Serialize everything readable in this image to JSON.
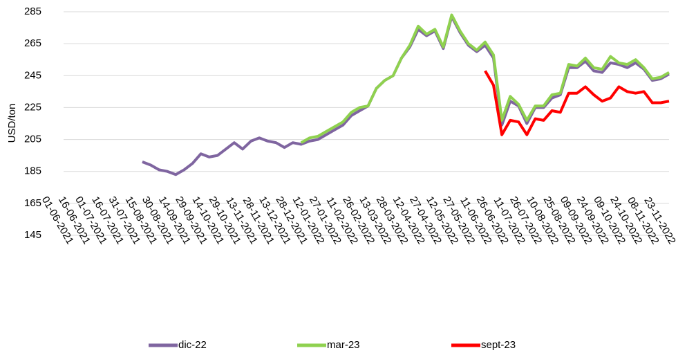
{
  "chart_data": {
    "type": "line",
    "y_label": "USD/ton",
    "categories": [
      "01-06-2021",
      null,
      "16-06-2021",
      null,
      "01-07-2021",
      null,
      "16-07-2021",
      null,
      "31-07-2021",
      null,
      "15-08-2021",
      null,
      "30-08-2021",
      null,
      "14-09-2021",
      null,
      "29-09-2021",
      null,
      "14-10-2021",
      null,
      "29-10-2021",
      null,
      "13-11-2021",
      null,
      "28-11-2021",
      null,
      "13-12-2021",
      null,
      "28-12-2021",
      null,
      "12-01-2022",
      null,
      "27-01-2022",
      null,
      "11-02-2022",
      null,
      "26-02-2022",
      null,
      "13-03-2022",
      null,
      "28-03-2022",
      null,
      "12-04-2022",
      null,
      "27-04-2022",
      null,
      "12-05-2022",
      null,
      "27-05-2022",
      null,
      "11-06-2022",
      null,
      "26-06-2022",
      null,
      "11-07-2022",
      null,
      "26-07-2022",
      null,
      "10-08-2022",
      null,
      "25-08-2022",
      null,
      "09-09-2022",
      null,
      "24-09-2022",
      null,
      "09-10-2022",
      null,
      "24-10-2022",
      null,
      "08-11-2022",
      null,
      "23-11-2022"
    ],
    "series": [
      {
        "name": "dic-22",
        "color": "#7f65a0",
        "values": [
          null,
          null,
          null,
          null,
          null,
          null,
          null,
          null,
          null,
          191,
          189,
          186,
          185,
          183,
          186,
          190,
          196,
          194,
          195,
          199,
          203,
          199,
          204,
          206,
          204,
          203,
          200,
          203,
          202,
          204,
          205,
          208,
          211,
          214,
          220,
          223,
          226,
          237,
          242,
          245,
          256,
          263,
          274,
          270,
          273,
          262,
          282,
          272,
          264,
          260,
          264,
          256,
          214,
          229,
          226,
          215,
          225,
          225,
          231,
          233,
          250,
          250,
          254,
          248,
          247,
          253,
          252,
          250,
          253,
          249,
          242,
          243,
          246
        ]
      },
      {
        "name": "mar-23",
        "color": "#8fd14f",
        "values": [
          null,
          null,
          null,
          null,
          null,
          null,
          null,
          null,
          null,
          null,
          null,
          null,
          null,
          null,
          null,
          null,
          null,
          null,
          null,
          null,
          null,
          null,
          null,
          null,
          null,
          null,
          null,
          null,
          203,
          206,
          207,
          210,
          213,
          216,
          222,
          225,
          226,
          237,
          242,
          245,
          256,
          264,
          276,
          271,
          274,
          263,
          283,
          273,
          265,
          261,
          266,
          258,
          217,
          232,
          227,
          217,
          226,
          226,
          233,
          234,
          252,
          251,
          256,
          250,
          249,
          257,
          253,
          252,
          255,
          250,
          243,
          244,
          247
        ]
      },
      {
        "name": "sept-23",
        "color": "#ff0000",
        "values": [
          null,
          null,
          null,
          null,
          null,
          null,
          null,
          null,
          null,
          null,
          null,
          null,
          null,
          null,
          null,
          null,
          null,
          null,
          null,
          null,
          null,
          null,
          null,
          null,
          null,
          null,
          null,
          null,
          null,
          null,
          null,
          null,
          null,
          null,
          null,
          null,
          null,
          null,
          null,
          null,
          null,
          null,
          null,
          null,
          null,
          null,
          null,
          null,
          null,
          null,
          248,
          239,
          208,
          217,
          216,
          208,
          218,
          217,
          223,
          222,
          234,
          234,
          238,
          233,
          229,
          231,
          238,
          235,
          234,
          235,
          228,
          228,
          229
        ]
      }
    ],
    "ylim": [
      145,
      285
    ],
    "yticks": [
      145,
      165,
      185,
      205,
      225,
      245,
      265,
      285
    ],
    "grid": true,
    "legend": "bottom"
  }
}
